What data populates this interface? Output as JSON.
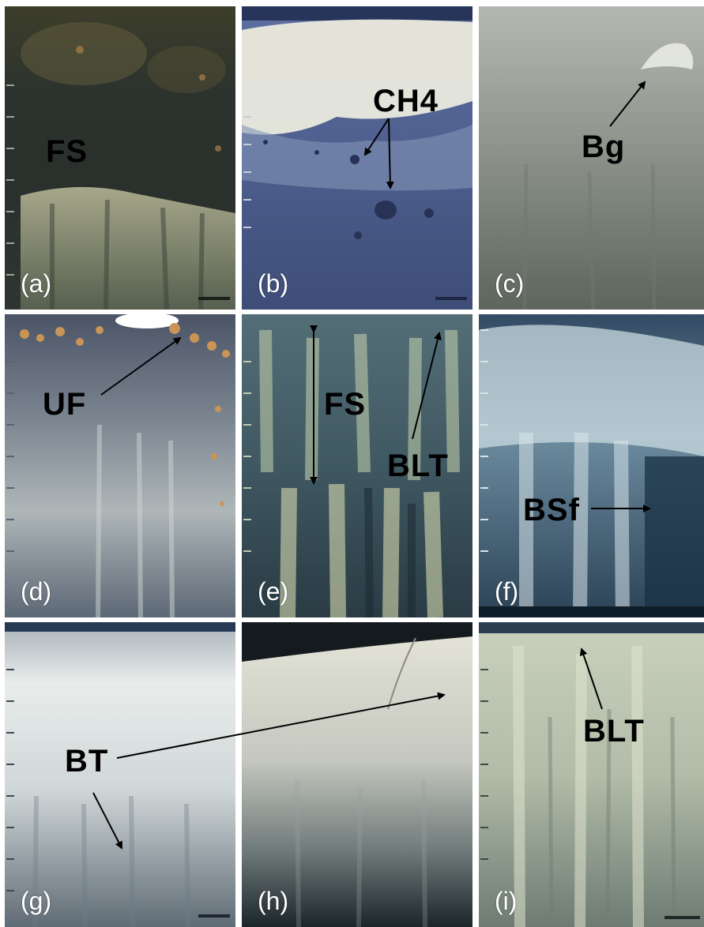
{
  "panels": [
    {
      "label": "(a)"
    },
    {
      "label": "(b)"
    },
    {
      "label": "(c)"
    },
    {
      "label": "(d)"
    },
    {
      "label": "(e)"
    },
    {
      "label": "(f)"
    },
    {
      "label": "(g)"
    },
    {
      "label": "(h)"
    },
    {
      "label": "(i)"
    }
  ],
  "annotations": {
    "a": "FS",
    "b": "CH4",
    "c": "Bg",
    "d": "UF",
    "e_fs": "FS",
    "e_blt": "BLT",
    "f": "BSf",
    "g": "BT",
    "i": "BLT"
  },
  "colors": {
    "background": "#ffffff",
    "label_text": "#ffffff",
    "annotation_text": "#000000",
    "arrow": "#000000"
  }
}
